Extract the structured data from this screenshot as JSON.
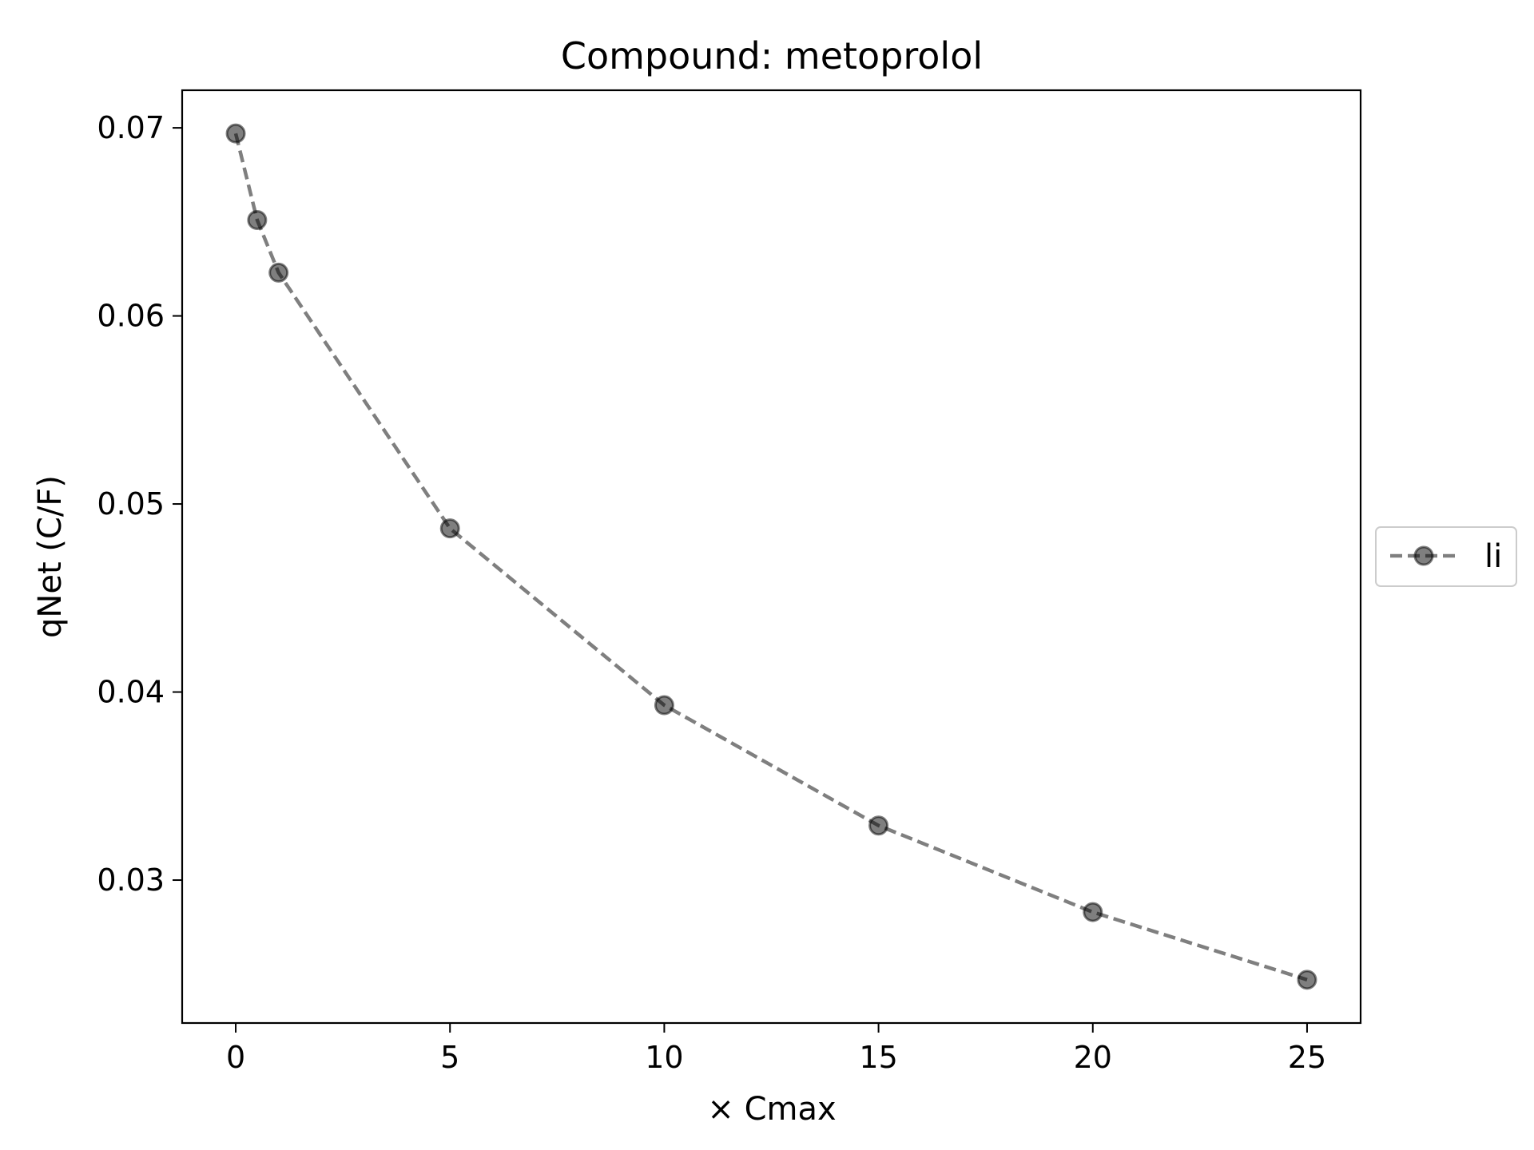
{
  "chart_data": {
    "type": "line",
    "title": "Compound: metoprolol",
    "xlabel": "× Cmax",
    "ylabel": "qNet (C/F)",
    "xlim": [
      -1.25,
      26.25
    ],
    "ylim": [
      0.0224,
      0.072
    ],
    "x_ticks": [
      0,
      5,
      10,
      15,
      20,
      25
    ],
    "x_tick_labels": [
      "0",
      "5",
      "10",
      "15",
      "20",
      "25"
    ],
    "y_ticks": [
      0.03,
      0.04,
      0.05,
      0.06,
      0.07
    ],
    "y_tick_labels": [
      "0.03",
      "0.04",
      "0.05",
      "0.06",
      "0.07"
    ],
    "grid": false,
    "legend_position": "right-center-outside",
    "series": [
      {
        "name": "li",
        "line_style": "dashed",
        "marker": "circle",
        "color": "#000000",
        "x": [
          0,
          0.5,
          1,
          5,
          10,
          15,
          20,
          25
        ],
        "values": [
          0.0697,
          0.0651,
          0.0623,
          0.0487,
          0.0393,
          0.0329,
          0.0283,
          0.0247
        ]
      }
    ]
  }
}
